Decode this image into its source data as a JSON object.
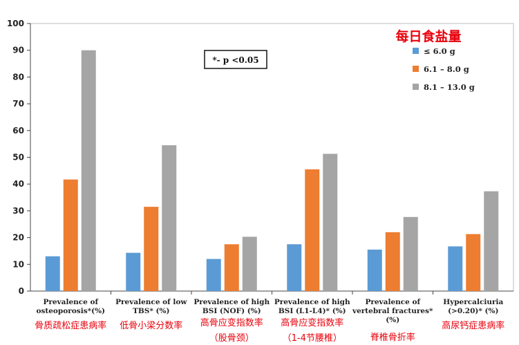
{
  "chart_data": {
    "type": "bar",
    "ylim": [
      0,
      100
    ],
    "yticks": [
      0,
      10,
      20,
      30,
      40,
      50,
      60,
      70,
      80,
      90,
      100
    ],
    "categories": [
      [
        "Prevalence of",
        "osteoporosis*(%)"
      ],
      [
        "Prevalence of low",
        "TBS* (%)"
      ],
      [
        "Prevalence of high",
        "BSI (NOF) (%)"
      ],
      [
        "Prevalence of high",
        "BSI (L1-L4)* (%)"
      ],
      [
        "Prevalence of",
        "vertebral fractures*",
        "(%)"
      ],
      [
        "Hypercalciuria",
        "(>0.20)* (%)"
      ]
    ],
    "categories_cn": [
      [
        "骨质疏松症患病率"
      ],
      [
        "低骨小梁分数率"
      ],
      [
        "高骨应变指数率",
        "（股骨颈）"
      ],
      [
        "高骨应变指数率",
        "（1-4节腰椎）"
      ],
      [
        "脊椎骨折率"
      ],
      [
        "高尿钙症患病率"
      ]
    ],
    "legend_title": "每日食盐量",
    "legend_position": "top-right",
    "series": [
      {
        "name": "≤ 6.0 g",
        "color": "#5b9bd5",
        "values": [
          13,
          14.3,
          12,
          17.5,
          15.5,
          16.7
        ]
      },
      {
        "name": "6.1 – 8.0 g",
        "color": "#ed7d31",
        "values": [
          41.7,
          31.5,
          17.5,
          45.5,
          22,
          21.3
        ]
      },
      {
        "name": "8.1 – 13.0 g",
        "color": "#a5a5a5",
        "values": [
          90,
          54.5,
          20.3,
          51.3,
          27.7,
          37.3
        ]
      }
    ],
    "annotation": "*- p <0.05",
    "grid": false
  }
}
